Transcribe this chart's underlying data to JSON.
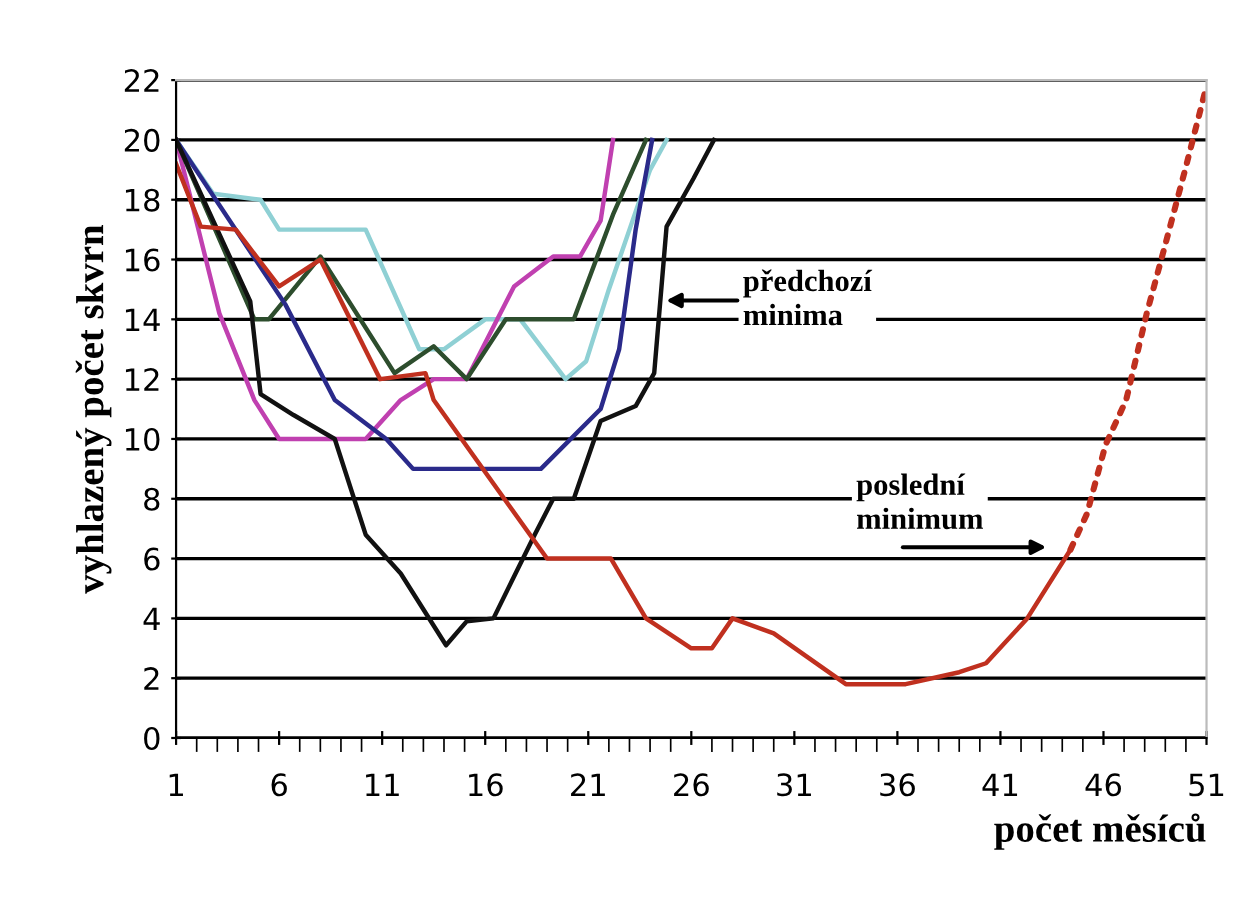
{
  "chart_data": {
    "type": "line",
    "xlabel": "počet měsíců",
    "ylabel": "vyhlazený počet skvrn",
    "xlim": [
      1,
      51
    ],
    "xticks": [
      1,
      6,
      11,
      16,
      21,
      26,
      31,
      36,
      41,
      46,
      51
    ],
    "ylim": [
      0,
      22
    ],
    "yticks": [
      0,
      2,
      4,
      6,
      8,
      10,
      12,
      14,
      16,
      18,
      20,
      22
    ],
    "grid": "y",
    "legend": false,
    "line_style": "solid",
    "series": [
      {
        "color": "#8fd0d4",
        "x": [
          1,
          2.8,
          5.1,
          6,
          10.2,
          12.8,
          14,
          16,
          17.7,
          19.9,
          20.9,
          22,
          23,
          24,
          24.8
        ],
        "values": [
          20,
          18.2,
          18,
          17,
          17,
          13,
          13,
          14,
          14,
          12,
          12.6,
          15,
          17,
          19,
          20
        ]
      },
      {
        "color": "#c040b0",
        "x": [
          1,
          3.1,
          4.8,
          6,
          10.2,
          11.9,
          13.5,
          15.1,
          17.4,
          19.3,
          20.6,
          21.6,
          22.2
        ],
        "values": [
          20,
          14.2,
          11.3,
          10,
          10,
          11.3,
          12,
          12,
          15.1,
          16.1,
          16.1,
          17.3,
          20
        ]
      },
      {
        "color": "#2d4d2d",
        "x": [
          1,
          4.8,
          5.5,
          8,
          11.6,
          13.5,
          15.1,
          17,
          20.3,
          22.2,
          23.8
        ],
        "values": [
          20,
          14,
          14,
          16.1,
          12.2,
          13.1,
          12,
          14,
          14,
          17.5,
          20
        ]
      },
      {
        "color": "#2a2a8a",
        "x": [
          1,
          6.3,
          8.7,
          11.2,
          12.5,
          18.7,
          21.6,
          22.5,
          23.3,
          24.1
        ],
        "values": [
          20,
          14.5,
          11.3,
          10,
          9,
          9,
          11,
          13,
          17,
          20
        ]
      },
      {
        "color": "#111111",
        "x": [
          1,
          4.6,
          5.1,
          6.7,
          8.7,
          10.2,
          11.9,
          14.1,
          15.1,
          16.4,
          18.4,
          19.3,
          20.3,
          21.6,
          23.3,
          24.2,
          24.8,
          26.1,
          27.1
        ],
        "values": [
          20,
          14.6,
          11.5,
          10.8,
          10,
          6.8,
          5.5,
          3.1,
          3.9,
          4,
          6.8,
          8,
          8,
          10.6,
          11.1,
          12.2,
          17.1,
          18.7,
          20
        ]
      },
      {
        "color": "#c0301f",
        "x": [
          1,
          2.2,
          3.9,
          6,
          8,
          10.9,
          13.1,
          13.5,
          19,
          22.1,
          23.8,
          26,
          27,
          28,
          30,
          33.5,
          36.4,
          39,
          40.3,
          42.3,
          44.4
        ],
        "values": [
          19.2,
          17.1,
          17,
          15.1,
          16,
          12,
          12.2,
          11.3,
          6,
          6,
          4,
          3,
          3,
          4,
          3.5,
          1.8,
          1.8,
          2.2,
          2.5,
          4,
          6.3
        ]
      },
      {
        "color": "#c0301f",
        "line_style": "dotted",
        "x": [
          44.4,
          45.2,
          46.1,
          47.1,
          48.1,
          49,
          50,
          51
        ],
        "values": [
          6.3,
          7.5,
          9.8,
          11.3,
          14.2,
          16.5,
          19.1,
          21.8
        ]
      }
    ],
    "annotations": [
      "předchozí\nminima",
      "poslední\nminimum"
    ]
  }
}
